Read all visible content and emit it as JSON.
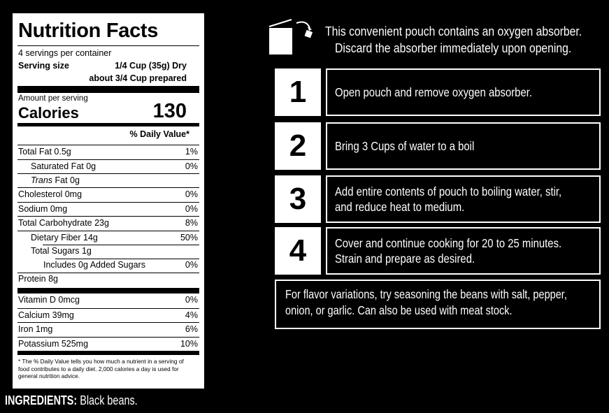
{
  "nutrition": {
    "title": "Nutrition Facts",
    "servings": "4 servings per container",
    "serving_size_label": "Serving size",
    "serving_size_value": "1/4 Cup (35g) Dry",
    "serving_prepared": "about 3/4 Cup prepared",
    "amount_per_serving": "Amount per serving",
    "calories_label": "Calories",
    "calories_value": "130",
    "dv_header": "% Daily Value*",
    "rows": [
      {
        "label": "Total Fat 0.5g",
        "dv": "1%"
      },
      {
        "label": "Saturated Fat 0g",
        "dv": "0%"
      },
      {
        "label_italic": "Trans",
        "label": " Fat 0g",
        "dv": ""
      },
      {
        "label": "Cholesterol 0mg",
        "dv": "0%"
      },
      {
        "label": "Sodium 0mg",
        "dv": "0%"
      },
      {
        "label": "Total Carbohydrate 23g",
        "dv": "8%"
      },
      {
        "label": "Dietary Fiber 14g",
        "dv": "50%"
      },
      {
        "label": "Total Sugars 1g",
        "dv": ""
      },
      {
        "label": "Includes 0g Added Sugars",
        "dv": "0%"
      },
      {
        "label": "Protein 8g",
        "dv": ""
      },
      {
        "label": "Vitamin D 0mcg",
        "dv": "0%"
      },
      {
        "label": "Calcium 39mg",
        "dv": "4%"
      },
      {
        "label": "Iron 1mg",
        "dv": "6%"
      },
      {
        "label": "Potassium 525mg",
        "dv": "10%"
      }
    ],
    "footnote": "* The % Daily Value tells you how much a nutrient in a serving of food contributes to a daily diet. 2,000 calories a day is used for general nutrition advice."
  },
  "ingredients": {
    "label": "INGREDIENTS:",
    "value": " Black beans."
  },
  "oxygen_notice": {
    "line1": "This convenient pouch contains an oxygen absorber.",
    "line2": "Discard the absorber immediately upon opening.",
    "icon": "pouch-absorber-icon"
  },
  "steps": [
    {
      "number": "1",
      "lines": [
        "Open pouch and remove oxygen absorber."
      ]
    },
    {
      "number": "2",
      "lines": [
        "Bring 3 Cups of water to a boil"
      ]
    },
    {
      "number": "3",
      "lines": [
        "Add entire contents of pouch to boiling water, stir,",
        "and reduce heat to medium."
      ]
    },
    {
      "number": "4",
      "lines": [
        "Cover and continue cooking for 20 to 25 minutes.",
        "Strain and prepare as desired."
      ]
    }
  ],
  "flavor": {
    "line1": "For flavor variations, try seasoning the beans with salt, pepper,",
    "line2": "onion, or garlic. Can also be used with meat stock."
  }
}
